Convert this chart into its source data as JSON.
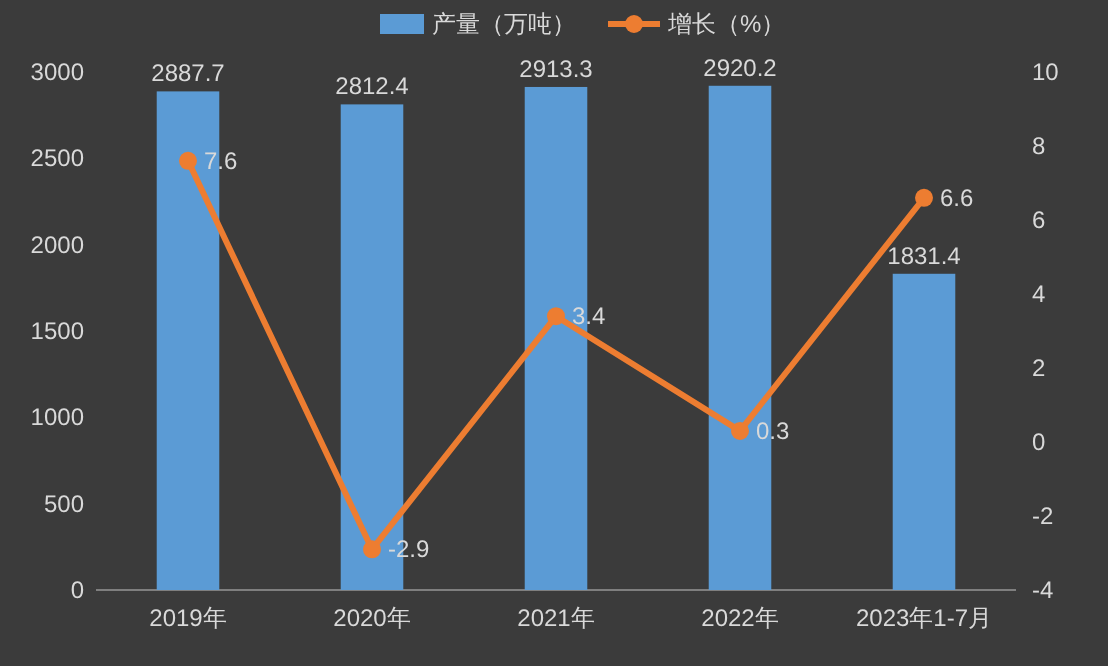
{
  "chart_data": {
    "type": "bar",
    "categories": [
      "2019年",
      "2020年",
      "2021年",
      "2022年",
      "2023年1-7月"
    ],
    "series": [
      {
        "name": "产量（万吨）",
        "color": "#5b9bd5",
        "values": [
          2887.7,
          2812.4,
          2913.3,
          2920.2,
          1831.4
        ]
      },
      {
        "name": "增长（%）",
        "color": "#ed7d31",
        "type": "line",
        "axis": "y2",
        "marker": "circle",
        "values": [
          7.6,
          -2.9,
          3.4,
          0.3,
          6.6
        ]
      }
    ],
    "ylim": [
      0,
      3000
    ],
    "yticks": [
      0,
      500,
      1000,
      1500,
      2000,
      2500,
      3000
    ],
    "y2lim": [
      -4,
      10
    ],
    "y2ticks": [
      -4,
      -2,
      0,
      2,
      4,
      6,
      8,
      10
    ],
    "data_labels": true,
    "legend": "top",
    "grid": false
  }
}
